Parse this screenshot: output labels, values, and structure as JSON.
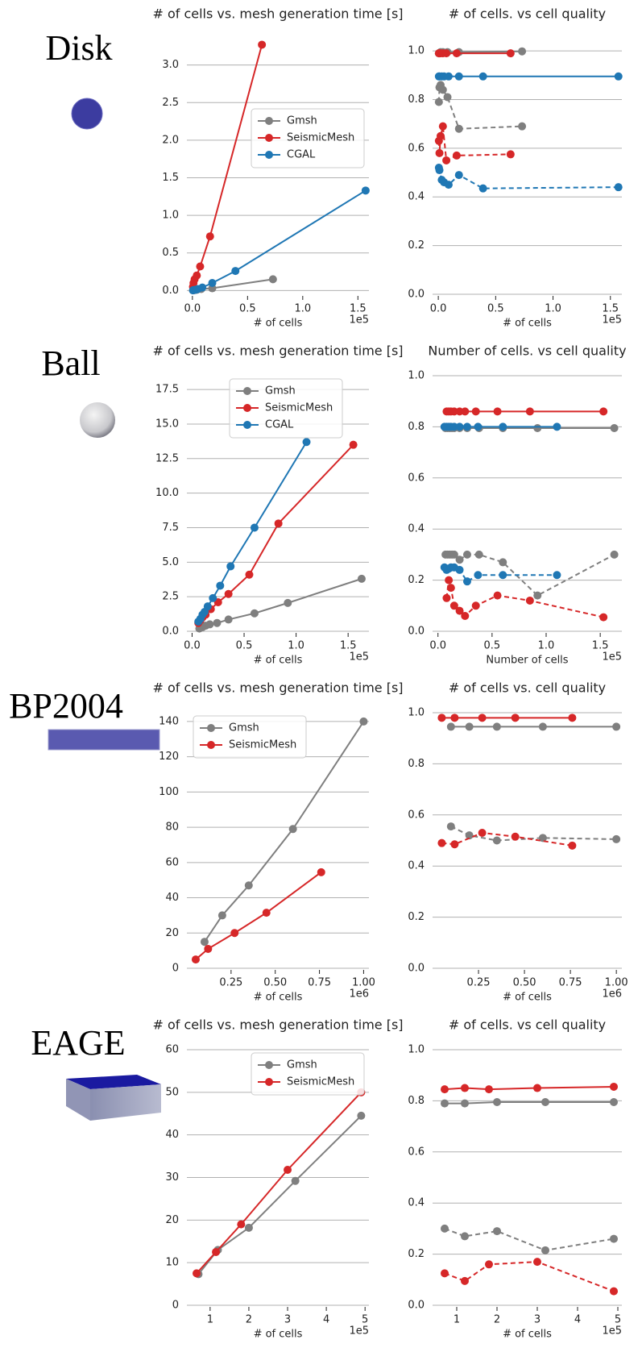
{
  "panels": [
    {
      "label": "Disk"
    },
    {
      "label": "Ball"
    },
    {
      "label": "BP2004"
    },
    {
      "label": "EAGE"
    }
  ],
  "chart_data": [
    {
      "type": "line",
      "title": "# of cells vs. mesh generation time [s]",
      "x_label": "# of cells",
      "x_offset": "1e5",
      "grid": true,
      "legend": "center right",
      "xlim": [
        -0.05,
        1.6
      ],
      "xticks": [
        {
          "value": 0,
          "label": "0.0"
        },
        0.5,
        {
          "value": 1,
          "label": "1.0"
        },
        1.5
      ],
      "ylim": [
        -0.05,
        3.35
      ],
      "yticks": [
        {
          "value": 0,
          "label": "0.0"
        },
        0.5,
        {
          "value": 1,
          "label": "1.0"
        },
        1.5,
        {
          "value": 2,
          "label": "2.0"
        },
        2.5,
        {
          "value": 3,
          "label": "3.0"
        }
      ],
      "series": [
        {
          "name": "Gmsh",
          "color": "#7f7f7f",
          "linestyle": "solid",
          "x": [
            0.005,
            0.01,
            0.02,
            0.04,
            0.08,
            0.18,
            0.73
          ],
          "values": [
            0.002,
            0.004,
            0.006,
            0.01,
            0.02,
            0.03,
            0.15
          ]
        },
        {
          "name": "SeismicMesh",
          "color": "#d62728",
          "linestyle": "solid",
          "x": [
            0.005,
            0.01,
            0.02,
            0.04,
            0.07,
            0.16,
            0.63
          ],
          "values": [
            0.05,
            0.1,
            0.15,
            0.2,
            0.32,
            0.72,
            3.27
          ]
        },
        {
          "name": "CGAL",
          "color": "#1f77b4",
          "linestyle": "solid",
          "x": [
            0.005,
            0.01,
            0.03,
            0.05,
            0.09,
            0.18,
            0.39,
            1.57
          ],
          "values": [
            0.002,
            0.005,
            0.01,
            0.02,
            0.04,
            0.1,
            0.26,
            1.33
          ]
        }
      ]
    },
    {
      "type": "line",
      "title": "# of cells. vs cell quality",
      "x_label": "# of cells",
      "x_offset": "1e5",
      "grid": true,
      "xlim": [
        -0.05,
        1.6
      ],
      "xticks": [
        {
          "value": 0,
          "label": "0.0"
        },
        0.5,
        {
          "value": 1,
          "label": "1.0"
        },
        1.5
      ],
      "ylim": [
        0,
        1.05
      ],
      "yticks": [
        {
          "value": 0,
          "label": "0.0"
        },
        0.2,
        0.4,
        0.6,
        0.8,
        {
          "value": 1,
          "label": "1.0"
        }
      ],
      "series": [
        {
          "color": "#7f7f7f",
          "linestyle": "solid",
          "x": [
            0.005,
            0.01,
            0.02,
            0.04,
            0.08,
            0.18,
            0.73
          ],
          "values": [
            0.99,
            0.99,
            0.995,
            0.995,
            0.995,
            0.995,
            0.998
          ]
        },
        {
          "color": "#7f7f7f",
          "linestyle": "dashed",
          "x": [
            0.005,
            0.01,
            0.02,
            0.04,
            0.08,
            0.18,
            0.73
          ],
          "values": [
            0.79,
            0.85,
            0.86,
            0.84,
            0.81,
            0.68,
            0.69
          ]
        },
        {
          "color": "#d62728",
          "linestyle": "solid",
          "x": [
            0.005,
            0.01,
            0.02,
            0.04,
            0.07,
            0.16,
            0.63
          ],
          "values": [
            0.99,
            0.99,
            0.99,
            0.99,
            0.99,
            0.99,
            0.99
          ]
        },
        {
          "color": "#d62728",
          "linestyle": "dashed",
          "x": [
            0.005,
            0.01,
            0.02,
            0.04,
            0.07,
            0.16,
            0.63
          ],
          "values": [
            0.63,
            0.58,
            0.65,
            0.69,
            0.55,
            0.57,
            0.575
          ]
        },
        {
          "color": "#1f77b4",
          "linestyle": "solid",
          "x": [
            0.005,
            0.01,
            0.03,
            0.05,
            0.09,
            0.18,
            0.39,
            1.57
          ],
          "values": [
            0.895,
            0.895,
            0.895,
            0.895,
            0.895,
            0.895,
            0.895,
            0.895
          ]
        },
        {
          "color": "#1f77b4",
          "linestyle": "dashed",
          "x": [
            0.005,
            0.01,
            0.03,
            0.05,
            0.09,
            0.18,
            0.39,
            1.57
          ],
          "values": [
            0.52,
            0.51,
            0.47,
            0.46,
            0.45,
            0.49,
            0.435,
            0.44
          ]
        }
      ]
    },
    {
      "type": "line",
      "title": "# of cells vs. mesh generation time [s]",
      "x_label": "# of cells",
      "x_offset": "1e5",
      "grid": true,
      "legend": "upper center",
      "xlim": [
        -0.05,
        1.7
      ],
      "xticks": [
        {
          "value": 0,
          "label": "0.0"
        },
        0.5,
        {
          "value": 1,
          "label": "1.0"
        },
        1.5
      ],
      "ylim": [
        0,
        18.5
      ],
      "yticks": [
        {
          "value": 0,
          "label": "0.0"
        },
        2.5,
        {
          "value": 5,
          "label": "5.0"
        },
        7.5,
        {
          "value": 10,
          "label": "10.0"
        },
        12.5,
        {
          "value": 15,
          "label": "15.0"
        },
        17.5
      ],
      "series": [
        {
          "name": "Gmsh",
          "color": "#7f7f7f",
          "linestyle": "solid",
          "x": [
            0.07,
            0.1,
            0.13,
            0.17,
            0.24,
            0.35,
            0.6,
            0.92,
            1.63
          ],
          "values": [
            0.2,
            0.3,
            0.4,
            0.5,
            0.6,
            0.85,
            1.3,
            2.05,
            3.8
          ]
        },
        {
          "name": "SeismicMesh",
          "color": "#d62728",
          "linestyle": "solid",
          "x": [
            0.06,
            0.08,
            0.1,
            0.13,
            0.18,
            0.25,
            0.35,
            0.55,
            0.83,
            1.55
          ],
          "values": [
            0.6,
            0.8,
            1.0,
            1.2,
            1.6,
            2.1,
            2.7,
            4.1,
            7.8,
            13.5
          ]
        },
        {
          "name": "CGAL",
          "color": "#1f77b4",
          "linestyle": "solid",
          "x": [
            0.06,
            0.08,
            0.1,
            0.12,
            0.15,
            0.2,
            0.27,
            0.37,
            0.6,
            1.1
          ],
          "values": [
            0.7,
            0.9,
            1.2,
            1.4,
            1.8,
            2.4,
            3.3,
            4.7,
            7.5,
            13.7
          ]
        }
      ]
    },
    {
      "type": "line",
      "title": "Number of cells. vs cell quality",
      "x_label": "Number of cells",
      "x_offset": "1e5",
      "grid": true,
      "xlim": [
        -0.05,
        1.7
      ],
      "xticks": [
        {
          "value": 0,
          "label": "0.0"
        },
        0.5,
        {
          "value": 1,
          "label": "1.0"
        },
        1.5
      ],
      "ylim": [
        0,
        1
      ],
      "yticks": [
        {
          "value": 0,
          "label": "0.0"
        },
        0.2,
        0.4,
        0.6,
        0.8,
        {
          "value": 1,
          "label": "1.0"
        }
      ],
      "series": [
        {
          "color": "#7f7f7f",
          "linestyle": "solid",
          "x": [
            0.07,
            0.09,
            0.11,
            0.13,
            0.15,
            0.2,
            0.27,
            0.38,
            0.6,
            0.92,
            1.63
          ],
          "values": [
            0.795,
            0.795,
            0.795,
            0.795,
            0.795,
            0.795,
            0.795,
            0.795,
            0.795,
            0.795,
            0.795
          ]
        },
        {
          "color": "#7f7f7f",
          "linestyle": "dashed",
          "x": [
            0.07,
            0.09,
            0.11,
            0.13,
            0.15,
            0.2,
            0.27,
            0.38,
            0.6,
            0.92,
            1.63
          ],
          "values": [
            0.3,
            0.3,
            0.3,
            0.3,
            0.3,
            0.28,
            0.3,
            0.3,
            0.27,
            0.14,
            0.3
          ]
        },
        {
          "color": "#d62728",
          "linestyle": "solid",
          "x": [
            0.08,
            0.1,
            0.12,
            0.15,
            0.2,
            0.25,
            0.35,
            0.55,
            0.85,
            1.53
          ],
          "values": [
            0.86,
            0.86,
            0.86,
            0.86,
            0.86,
            0.86,
            0.86,
            0.86,
            0.86,
            0.86
          ]
        },
        {
          "color": "#d62728",
          "linestyle": "dashed",
          "x": [
            0.08,
            0.1,
            0.12,
            0.15,
            0.2,
            0.25,
            0.35,
            0.55,
            0.85,
            1.53
          ],
          "values": [
            0.13,
            0.2,
            0.17,
            0.1,
            0.08,
            0.06,
            0.1,
            0.14,
            0.12,
            0.055
          ]
        },
        {
          "color": "#1f77b4",
          "linestyle": "solid",
          "x": [
            0.06,
            0.08,
            0.1,
            0.12,
            0.15,
            0.2,
            0.27,
            0.37,
            0.6,
            1.1
          ],
          "values": [
            0.8,
            0.8,
            0.8,
            0.8,
            0.8,
            0.8,
            0.8,
            0.8,
            0.8,
            0.8
          ]
        },
        {
          "color": "#1f77b4",
          "linestyle": "dashed",
          "x": [
            0.06,
            0.08,
            0.1,
            0.12,
            0.15,
            0.2,
            0.27,
            0.37,
            0.6,
            1.1
          ],
          "values": [
            0.25,
            0.24,
            0.245,
            0.25,
            0.25,
            0.24,
            0.195,
            0.22,
            0.22,
            0.22
          ]
        }
      ]
    },
    {
      "type": "line",
      "title": "# of cells vs. mesh generation time [s]",
      "x_label": "# of cells",
      "x_offset": "1e6",
      "grid": true,
      "legend": "upper left",
      "xlim": [
        0,
        1.03
      ],
      "xticks": [
        0.25,
        {
          "value": 0.5,
          "label": "0.50"
        },
        0.75,
        {
          "value": 1,
          "label": "1.00"
        }
      ],
      "ylim": [
        0,
        145
      ],
      "yticks": [
        0,
        20,
        40,
        60,
        80,
        100,
        120,
        140
      ],
      "series": [
        {
          "name": "Gmsh",
          "color": "#7f7f7f",
          "linestyle": "solid",
          "x": [
            0.1,
            0.2,
            0.35,
            0.6,
            1.0
          ],
          "values": [
            15,
            30,
            47,
            79,
            140
          ]
        },
        {
          "name": "SeismicMesh",
          "color": "#d62728",
          "linestyle": "solid",
          "x": [
            0.05,
            0.12,
            0.27,
            0.45,
            0.76
          ],
          "values": [
            5,
            11,
            20,
            31.5,
            54.5
          ]
        }
      ]
    },
    {
      "type": "line",
      "title": "# of cells vs. cell quality",
      "x_label": "# of cells",
      "x_offset": "1e6",
      "grid": true,
      "xlim": [
        0,
        1.03
      ],
      "xticks": [
        0.25,
        {
          "value": 0.5,
          "label": "0.50"
        },
        0.75,
        {
          "value": 1,
          "label": "1.00"
        }
      ],
      "ylim": [
        0,
        1
      ],
      "yticks": [
        {
          "value": 0,
          "label": "0.0"
        },
        0.2,
        0.4,
        0.6,
        0.8,
        {
          "value": 1,
          "label": "1.0"
        }
      ],
      "series": [
        {
          "color": "#7f7f7f",
          "linestyle": "solid",
          "x": [
            0.1,
            0.2,
            0.35,
            0.6,
            1.0
          ],
          "values": [
            0.945,
            0.945,
            0.945,
            0.945,
            0.945
          ]
        },
        {
          "color": "#7f7f7f",
          "linestyle": "dashed",
          "x": [
            0.1,
            0.2,
            0.35,
            0.6,
            1.0
          ],
          "values": [
            0.555,
            0.52,
            0.5,
            0.51,
            0.505
          ]
        },
        {
          "color": "#d62728",
          "linestyle": "solid",
          "x": [
            0.05,
            0.12,
            0.27,
            0.45,
            0.76
          ],
          "values": [
            0.98,
            0.98,
            0.98,
            0.98,
            0.98
          ]
        },
        {
          "color": "#d62728",
          "linestyle": "dashed",
          "x": [
            0.05,
            0.12,
            0.27,
            0.45,
            0.76
          ],
          "values": [
            0.49,
            0.485,
            0.53,
            0.515,
            0.48
          ]
        }
      ]
    },
    {
      "type": "line",
      "title": "# of cells vs. mesh generation time [s]",
      "x_label": "# of cells",
      "x_offset": "1e5",
      "grid": true,
      "legend": "upper right",
      "xlim": [
        0.4,
        5.1
      ],
      "xticks": [
        1,
        2,
        3,
        4,
        5
      ],
      "ylim": [
        0,
        60
      ],
      "yticks": [
        0,
        10,
        20,
        30,
        40,
        50,
        60
      ],
      "series": [
        {
          "name": "Gmsh",
          "color": "#7f7f7f",
          "linestyle": "solid",
          "x": [
            0.7,
            1.2,
            2.0,
            3.2,
            4.9
          ],
          "values": [
            7.3,
            13,
            18.2,
            29.2,
            44.5
          ]
        },
        {
          "name": "SeismicMesh",
          "color": "#d62728",
          "linestyle": "solid",
          "x": [
            0.65,
            1.15,
            1.8,
            3.0,
            4.9
          ],
          "values": [
            7.5,
            12.5,
            19,
            31.8,
            50
          ]
        }
      ]
    },
    {
      "type": "line",
      "title": "# of cells. vs cell quality",
      "x_label": "# of cells",
      "x_offset": "1e5",
      "grid": true,
      "xlim": [
        0.4,
        5.1
      ],
      "xticks": [
        1,
        2,
        3,
        4,
        5
      ],
      "ylim": [
        0,
        1
      ],
      "yticks": [
        {
          "value": 0,
          "label": "0.0"
        },
        0.2,
        0.4,
        0.6,
        0.8,
        {
          "value": 1,
          "label": "1.0"
        }
      ],
      "series": [
        {
          "color": "#7f7f7f",
          "linestyle": "solid",
          "x": [
            0.7,
            1.2,
            2.0,
            3.2,
            4.9
          ],
          "values": [
            0.79,
            0.79,
            0.795,
            0.795,
            0.795
          ]
        },
        {
          "color": "#7f7f7f",
          "linestyle": "dashed",
          "x": [
            0.7,
            1.2,
            2.0,
            3.2,
            4.9
          ],
          "values": [
            0.3,
            0.27,
            0.29,
            0.215,
            0.26
          ]
        },
        {
          "color": "#d62728",
          "linestyle": "solid",
          "x": [
            0.7,
            1.2,
            1.8,
            3.0,
            4.9
          ],
          "values": [
            0.845,
            0.85,
            0.845,
            0.85,
            0.855
          ]
        },
        {
          "color": "#d62728",
          "linestyle": "dashed",
          "x": [
            0.7,
            1.2,
            1.8,
            3.0,
            4.9
          ],
          "values": [
            0.125,
            0.095,
            0.16,
            0.17,
            0.055
          ]
        }
      ]
    }
  ]
}
